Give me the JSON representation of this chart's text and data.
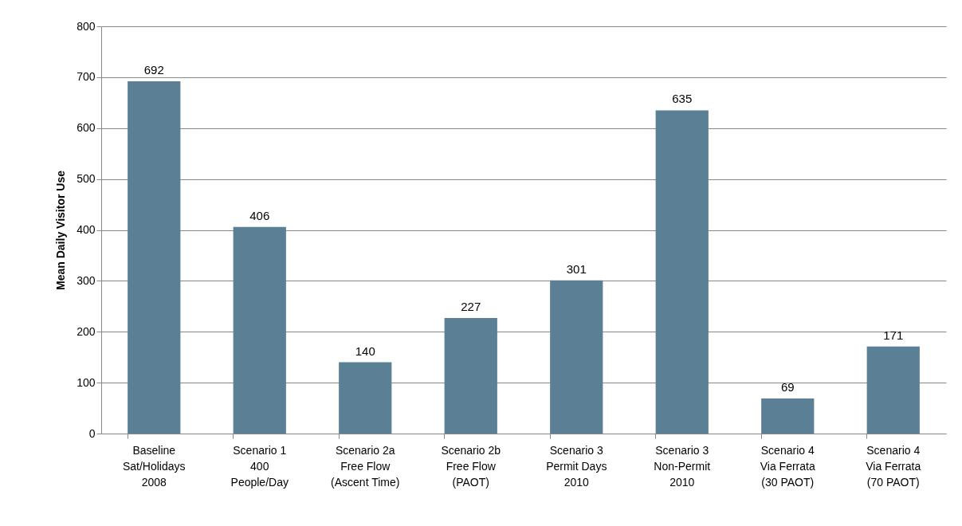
{
  "chart_data": {
    "type": "bar",
    "ylabel": "Mean Daily Visitor Use",
    "categories": [
      "Baseline\nSat/Holidays\n2008",
      "Scenario 1\n400\nPeople/Day",
      "Scenario 2a\nFree Flow\n(Ascent Time)",
      "Scenario 2b\nFree Flow\n(PAOT)",
      "Scenario 3\nPermit Days\n2010",
      "Scenario 3\nNon-Permit\n2010",
      "Scenario 4\nVia Ferrata\n(30 PAOT)",
      "Scenario 4\nVia Ferrata\n(70 PAOT)"
    ],
    "values": [
      692,
      406,
      140,
      227,
      301,
      635,
      69,
      171
    ],
    "color": "#5b7f95",
    "ylim": [
      0,
      800
    ],
    "yticks": [
      0,
      100,
      200,
      300,
      400,
      500,
      600,
      700,
      800
    ],
    "grid": "y",
    "data_labels": true
  }
}
